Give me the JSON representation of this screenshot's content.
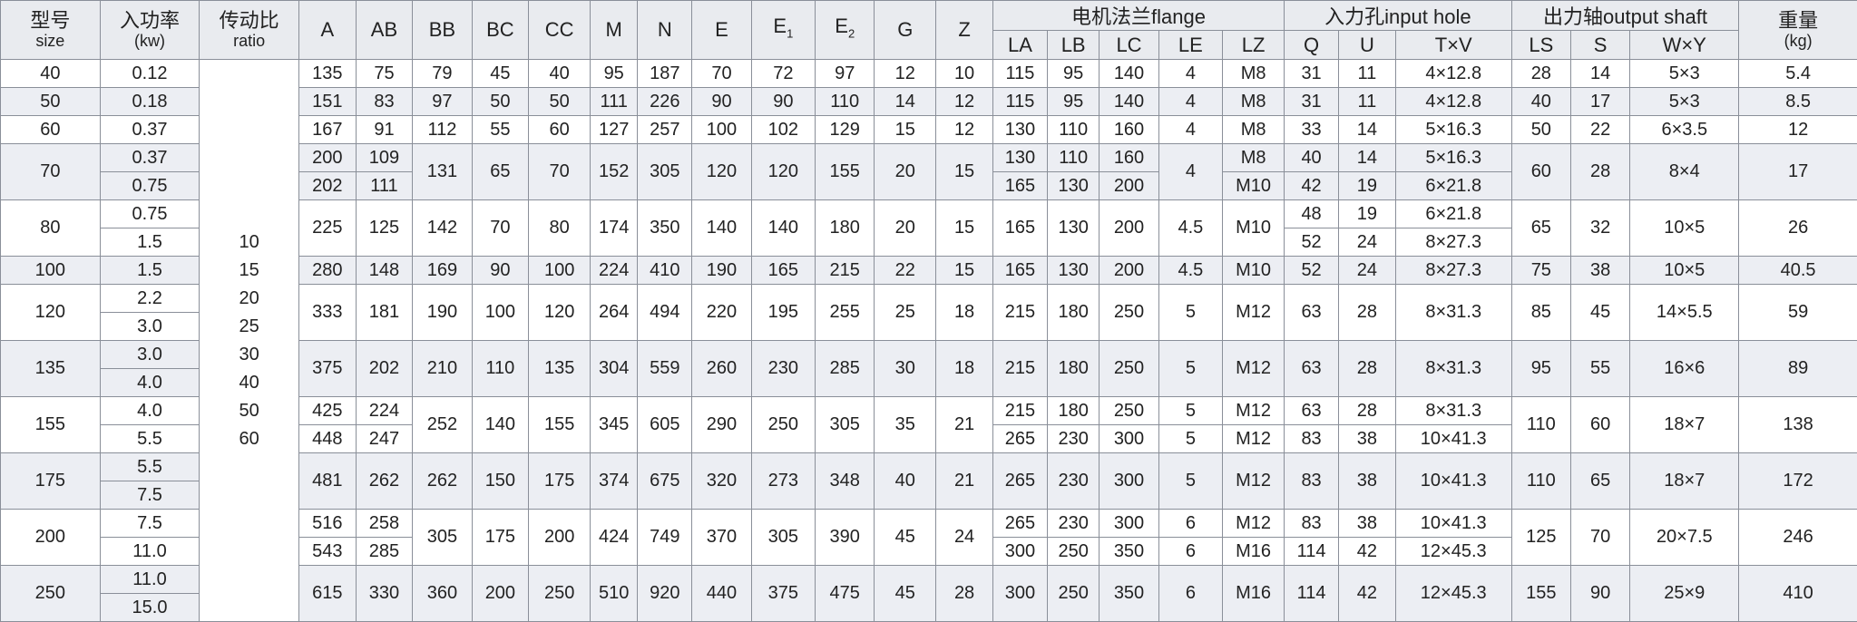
{
  "header": {
    "left": [
      {
        "label": "型号",
        "sub": "size"
      },
      {
        "label": "入功率",
        "sub": "(kw)"
      },
      {
        "label": "传动比",
        "sub": "ratio"
      },
      {
        "label": "A"
      },
      {
        "label": "AB"
      },
      {
        "label": "BB"
      },
      {
        "label": "BC"
      },
      {
        "label": "CC"
      },
      {
        "label": "M"
      },
      {
        "label": "N"
      },
      {
        "label": "E"
      },
      {
        "label": "E",
        "subscript": "1"
      },
      {
        "label": "E",
        "subscript": "2"
      },
      {
        "label": "G"
      },
      {
        "label": "Z"
      }
    ],
    "groups": [
      {
        "label": "电机法兰flange",
        "columns": [
          "LA",
          "LB",
          "LC",
          "LE",
          "LZ"
        ]
      },
      {
        "label": "入力孔input hole",
        "columns": [
          "Q",
          "U",
          "T×V"
        ]
      },
      {
        "label": "出力轴output shaft",
        "columns": [
          "LS",
          "S",
          "W×Y"
        ]
      }
    ],
    "right": [
      {
        "label": "重量",
        "sub": "(kg)"
      }
    ]
  },
  "table": {
    "ratios": [
      "10",
      "15",
      "20",
      "25",
      "30",
      "40",
      "50",
      "60"
    ],
    "groups": [
      {
        "size": "40",
        "power": "0.12",
        "cells": [
          "135",
          "75",
          "79",
          "45",
          "40",
          "95",
          "187",
          "70",
          "72",
          "97",
          "12",
          "10",
          "115",
          "95",
          "140",
          "4",
          "M8",
          "31",
          "11",
          "4×12.8",
          "28",
          "14",
          "5×3",
          "5.4"
        ]
      },
      {
        "size": "50",
        "power": "0.18",
        "cells": [
          "151",
          "83",
          "97",
          "50",
          "50",
          "111",
          "226",
          "90",
          "90",
          "110",
          "14",
          "12",
          "115",
          "95",
          "140",
          "4",
          "M8",
          "31",
          "11",
          "4×12.8",
          "40",
          "17",
          "5×3",
          "8.5"
        ]
      },
      {
        "size": "60",
        "power": "0.37",
        "cells": [
          "167",
          "91",
          "112",
          "55",
          "60",
          "127",
          "257",
          "100",
          "102",
          "129",
          "15",
          "12",
          "130",
          "110",
          "160",
          "4",
          "M8",
          "33",
          "14",
          "5×16.3",
          "50",
          "22",
          "6×3.5",
          "12"
        ]
      },
      {
        "size": "70",
        "power": [
          "0.37",
          "0.75"
        ],
        "cells": [
          [
            "200",
            "202"
          ],
          [
            "109",
            "111"
          ],
          "131",
          "65",
          "70",
          "152",
          "305",
          "120",
          "120",
          "155",
          "20",
          "15",
          [
            "130",
            "165"
          ],
          [
            "110",
            "130"
          ],
          [
            "160",
            "200"
          ],
          "4",
          [
            "M8",
            "M10"
          ],
          [
            "40",
            "42"
          ],
          [
            "14",
            "19"
          ],
          [
            "5×16.3",
            "6×21.8"
          ],
          "60",
          "28",
          "8×4",
          "17"
        ]
      },
      {
        "size": "80",
        "power": [
          "0.75",
          "1.5"
        ],
        "cells": [
          "225",
          "125",
          "142",
          "70",
          "80",
          "174",
          "350",
          "140",
          "140",
          "180",
          "20",
          "15",
          "165",
          "130",
          "200",
          "4.5",
          "M10",
          [
            "48",
            "52"
          ],
          [
            "19",
            "24"
          ],
          [
            "6×21.8",
            "8×27.3"
          ],
          "65",
          "32",
          "10×5",
          "26"
        ]
      },
      {
        "size": "100",
        "power": "1.5",
        "cells": [
          "280",
          "148",
          "169",
          "90",
          "100",
          "224",
          "410",
          "190",
          "165",
          "215",
          "22",
          "15",
          "165",
          "130",
          "200",
          "4.5",
          "M10",
          "52",
          "24",
          "8×27.3",
          "75",
          "38",
          "10×5",
          "40.5"
        ]
      },
      {
        "size": "120",
        "power": [
          "2.2",
          "3.0"
        ],
        "cells": [
          "333",
          "181",
          "190",
          "100",
          "120",
          "264",
          "494",
          "220",
          "195",
          "255",
          "25",
          "18",
          "215",
          "180",
          "250",
          "5",
          "M12",
          "63",
          "28",
          "8×31.3",
          "85",
          "45",
          "14×5.5",
          "59"
        ]
      },
      {
        "size": "135",
        "power": [
          "3.0",
          "4.0"
        ],
        "cells": [
          "375",
          "202",
          "210",
          "110",
          "135",
          "304",
          "559",
          "260",
          "230",
          "285",
          "30",
          "18",
          "215",
          "180",
          "250",
          "5",
          "M12",
          "63",
          "28",
          "8×31.3",
          "95",
          "55",
          "16×6",
          "89"
        ]
      },
      {
        "size": "155",
        "power": [
          "4.0",
          "5.5"
        ],
        "cells": [
          [
            "425",
            "448"
          ],
          [
            "224",
            "247"
          ],
          "252",
          "140",
          "155",
          "345",
          "605",
          "290",
          "250",
          "305",
          "35",
          "21",
          [
            "215",
            "265"
          ],
          [
            "180",
            "230"
          ],
          [
            "250",
            "300"
          ],
          [
            "5",
            "5"
          ],
          [
            "M12",
            "M12"
          ],
          [
            "63",
            "83"
          ],
          [
            "28",
            "38"
          ],
          [
            "8×31.3",
            "10×41.3"
          ],
          "110",
          "60",
          "18×7",
          "138"
        ]
      },
      {
        "size": "175",
        "power": [
          "5.5",
          "7.5"
        ],
        "cells": [
          "481",
          "262",
          "262",
          "150",
          "175",
          "374",
          "675",
          "320",
          "273",
          "348",
          "40",
          "21",
          "265",
          "230",
          "300",
          "5",
          "M12",
          "83",
          "38",
          "10×41.3",
          "110",
          "65",
          "18×7",
          "172"
        ]
      },
      {
        "size": "200",
        "power": [
          "7.5",
          "11.0"
        ],
        "cells": [
          [
            "516",
            "543"
          ],
          [
            "258",
            "285"
          ],
          "305",
          "175",
          "200",
          "424",
          "749",
          "370",
          "305",
          "390",
          "45",
          "24",
          [
            "265",
            "300"
          ],
          [
            "230",
            "250"
          ],
          [
            "300",
            "350"
          ],
          [
            "6",
            "6"
          ],
          [
            "M12",
            "M16"
          ],
          [
            "83",
            "114"
          ],
          [
            "38",
            "42"
          ],
          [
            "10×41.3",
            "12×45.3"
          ],
          "125",
          "70",
          "20×7.5",
          "246"
        ]
      },
      {
        "size": "250",
        "power": [
          "11.0",
          "15.0"
        ],
        "cells": [
          "615",
          "330",
          "360",
          "200",
          "250",
          "510",
          "920",
          "440",
          "375",
          "475",
          "45",
          "28",
          "300",
          "250",
          "350",
          "6",
          "M16",
          "114",
          "42",
          "12×45.3",
          "155",
          "90",
          "25×9",
          "410"
        ]
      }
    ]
  }
}
